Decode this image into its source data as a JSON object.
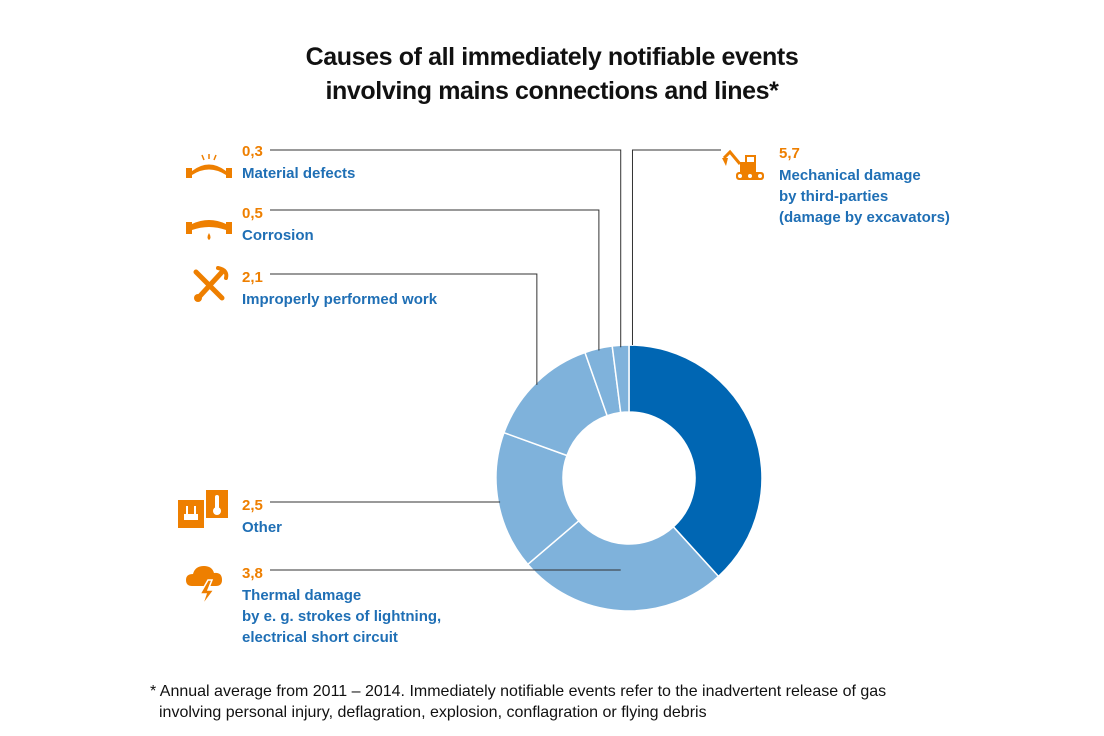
{
  "title": {
    "line1": "Causes of all immediately notifiable events",
    "line2": "involving mains connections and lines*"
  },
  "colors": {
    "value": "#ee7f00",
    "label": "#1f6fb5",
    "slice_main": "#0066b3",
    "slice_light": "#7fb2db",
    "leader": "#333333",
    "icon": "#ee7f00"
  },
  "chart_data": {
    "type": "pie",
    "style": "donut",
    "categories": [
      "Mechanical damage by third-parties (damage by excavators)",
      "Thermal damage by e. g. strokes of lightning, electrical short circuit",
      "Other",
      "Improperly performed work",
      "Corrosion",
      "Material defects"
    ],
    "values": [
      5.7,
      3.8,
      2.5,
      2.1,
      0.5,
      0.3
    ],
    "slices": [
      {
        "value": 5.7,
        "value_label": "5,7",
        "label_lines": [
          "Mechanical damage",
          "by third-parties",
          "(damage by excavators)"
        ],
        "icon": "excavator-icon",
        "highlight": true
      },
      {
        "value": 3.8,
        "value_label": "3,8",
        "label_lines": [
          "Thermal damage",
          "by e. g. strokes of lightning,",
          "electrical short circuit"
        ],
        "icon": "lightning-cloud-icon",
        "highlight": false
      },
      {
        "value": 2.5,
        "value_label": "2,5",
        "label_lines": [
          "Other"
        ],
        "icon": "plug-thermometer-icon",
        "highlight": false
      },
      {
        "value": 2.1,
        "value_label": "2,1",
        "label_lines": [
          "Improperly performed work"
        ],
        "icon": "wrench-screwdriver-icon",
        "highlight": false
      },
      {
        "value": 0.5,
        "value_label": "0,5",
        "label_lines": [
          "Corrosion"
        ],
        "icon": "pipe-drip-icon",
        "highlight": false
      },
      {
        "value": 0.3,
        "value_label": "0,3",
        "label_lines": [
          "Material defects"
        ],
        "icon": "pipe-crack-icon",
        "highlight": false
      }
    ]
  },
  "footnote": {
    "line1": "* Annual average from 2011 – 2014. Immediately notifiable events refer to the inadvertent release of gas",
    "line2": "involving personal injury, deflagration, explosion, conflagration or flying debris"
  }
}
